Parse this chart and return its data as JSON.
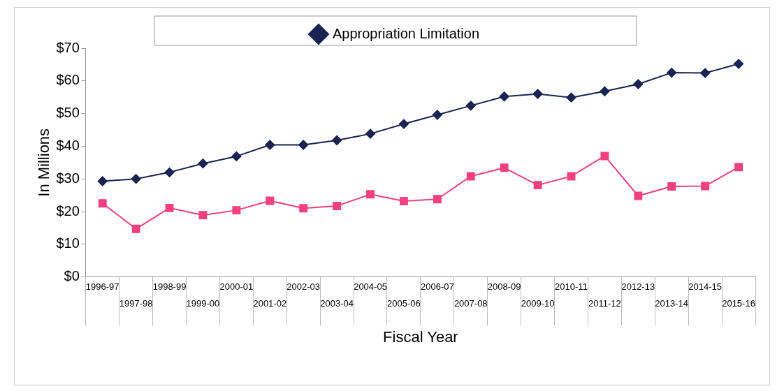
{
  "chart_data": {
    "type": "line",
    "xlabel": "Fiscal Year",
    "ylabel": "In Millions",
    "categories": [
      "1996-97",
      "1997-98",
      "1998-99",
      "1999-00",
      "2000-01",
      "2001-02",
      "2002-03",
      "2003-04",
      "2004-05",
      "2005-06",
      "2006-07",
      "2007-08",
      "2008-09",
      "2009-10",
      "2010-11",
      "2011-12",
      "2012-13",
      "2013-14",
      "2014-15",
      "2015-16"
    ],
    "series": [
      {
        "name": "Appropriation Limitation",
        "color": "#1a2452",
        "marker": "diamond",
        "values": [
          29.3,
          30.0,
          32.0,
          34.7,
          36.9,
          40.4,
          40.4,
          41.8,
          43.8,
          46.8,
          49.6,
          52.4,
          55.2,
          56.0,
          54.9,
          56.8,
          59.0,
          62.5,
          62.4,
          65.2
        ]
      },
      {
        "color": "#f0407f",
        "marker": "square",
        "values": [
          22.5,
          14.7,
          21.1,
          18.9,
          20.4,
          23.3,
          21.0,
          21.7,
          25.3,
          23.2,
          23.8,
          30.8,
          33.4,
          28.1,
          30.8,
          37.0,
          24.8,
          27.7,
          27.8,
          33.6
        ]
      }
    ],
    "ylim": [
      0,
      70
    ],
    "yticks": [
      {
        "value": 0,
        "label": "$0"
      },
      {
        "value": 10,
        "label": "$10"
      },
      {
        "value": 20,
        "label": "$20"
      },
      {
        "value": 30,
        "label": "$30"
      },
      {
        "value": 40,
        "label": "$40"
      },
      {
        "value": 50,
        "label": "$50"
      },
      {
        "value": 60,
        "label": "$60"
      },
      {
        "value": 70,
        "label": "$70"
      }
    ],
    "grid": false,
    "legend": "top",
    "line_style": "solid"
  }
}
